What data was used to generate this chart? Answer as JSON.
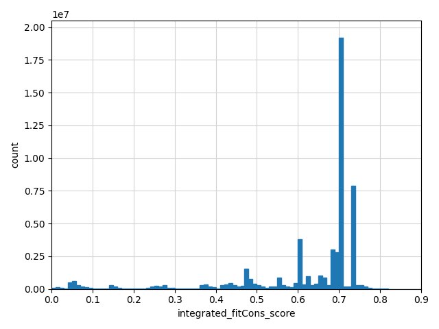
{
  "xlabel": "integrated_fitCons_score",
  "ylabel": "count",
  "bar_color": "#1f77b4",
  "xlim": [
    0.0,
    0.9
  ],
  "ylim": [
    0,
    20500000.0
  ],
  "bin_edges": [
    0.0,
    0.01,
    0.02,
    0.03,
    0.04,
    0.05,
    0.06,
    0.07,
    0.08,
    0.09,
    0.1,
    0.11,
    0.12,
    0.13,
    0.14,
    0.15,
    0.16,
    0.17,
    0.18,
    0.19,
    0.2,
    0.21,
    0.22,
    0.23,
    0.24,
    0.25,
    0.26,
    0.27,
    0.28,
    0.29,
    0.3,
    0.31,
    0.32,
    0.33,
    0.34,
    0.35,
    0.36,
    0.37,
    0.38,
    0.39,
    0.4,
    0.41,
    0.42,
    0.43,
    0.44,
    0.45,
    0.46,
    0.47,
    0.48,
    0.49,
    0.5,
    0.51,
    0.52,
    0.53,
    0.54,
    0.55,
    0.56,
    0.57,
    0.58,
    0.59,
    0.6,
    0.61,
    0.62,
    0.63,
    0.64,
    0.65,
    0.66,
    0.67,
    0.68,
    0.69,
    0.7,
    0.71,
    0.72,
    0.73,
    0.74,
    0.75,
    0.76,
    0.77,
    0.78,
    0.79,
    0.8,
    0.81,
    0.82,
    0.83,
    0.84,
    0.85,
    0.86,
    0.87,
    0.88,
    0.89,
    0.9
  ],
  "counts": [
    80000,
    150000,
    80000,
    40000,
    500000,
    600000,
    300000,
    180000,
    120000,
    80000,
    40000,
    25000,
    15000,
    25000,
    280000,
    180000,
    60000,
    50000,
    40000,
    40000,
    25000,
    15000,
    15000,
    80000,
    200000,
    260000,
    180000,
    270000,
    90000,
    70000,
    50000,
    40000,
    40000,
    30000,
    30000,
    40000,
    280000,
    330000,
    180000,
    130000,
    40000,
    280000,
    330000,
    470000,
    280000,
    180000,
    230000,
    1550000,
    750000,
    380000,
    280000,
    180000,
    90000,
    180000,
    180000,
    850000,
    280000,
    180000,
    130000,
    450000,
    3800000,
    370000,
    950000,
    280000,
    420000,
    1050000,
    850000,
    280000,
    3000000,
    2800000,
    19200000,
    180000,
    180000,
    7900000,
    280000,
    280000,
    180000,
    90000,
    40000,
    25000,
    15000,
    8000,
    4000,
    4000,
    2500,
    1500,
    800,
    400,
    250,
    150
  ]
}
